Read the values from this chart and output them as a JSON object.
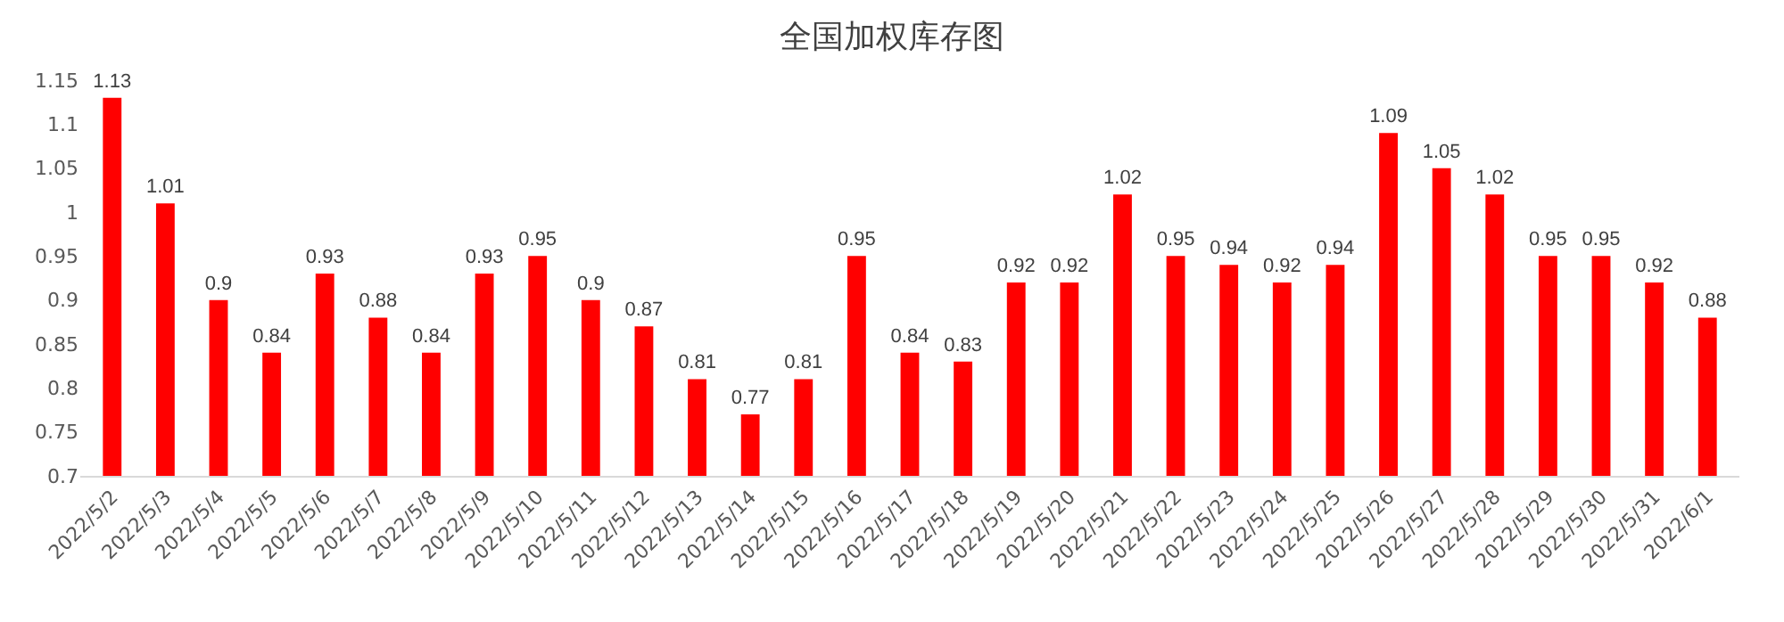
{
  "chart_data": {
    "type": "bar",
    "title": "全国加权库存图",
    "categories": [
      "2022/5/2",
      "2022/5/3",
      "2022/5/4",
      "2022/5/5",
      "2022/5/6",
      "2022/5/7",
      "2022/5/8",
      "2022/5/9",
      "2022/5/10",
      "2022/5/11",
      "2022/5/12",
      "2022/5/13",
      "2022/5/14",
      "2022/5/15",
      "2022/5/16",
      "2022/5/17",
      "2022/5/18",
      "2022/5/19",
      "2022/5/20",
      "2022/5/21",
      "2022/5/22",
      "2022/5/23",
      "2022/5/24",
      "2022/5/25",
      "2022/5/26",
      "2022/5/27",
      "2022/5/28",
      "2022/5/29",
      "2022/5/30",
      "2022/5/31",
      "2022/6/1"
    ],
    "values": [
      1.13,
      1.01,
      0.9,
      0.84,
      0.93,
      0.88,
      0.84,
      0.93,
      0.95,
      0.9,
      0.87,
      0.81,
      0.77,
      0.81,
      0.95,
      0.84,
      0.83,
      0.92,
      0.92,
      1.02,
      0.95,
      0.94,
      0.92,
      0.94,
      1.09,
      1.05,
      1.02,
      0.95,
      0.95,
      0.92,
      0.88
    ],
    "color": "#ff0000",
    "ylim": [
      0.7,
      1.15
    ],
    "yticks": [
      0.7,
      0.75,
      0.8,
      0.85,
      0.9,
      0.95,
      1,
      1.05,
      1.1,
      1.15
    ],
    "grid": false,
    "data_labels": true
  }
}
